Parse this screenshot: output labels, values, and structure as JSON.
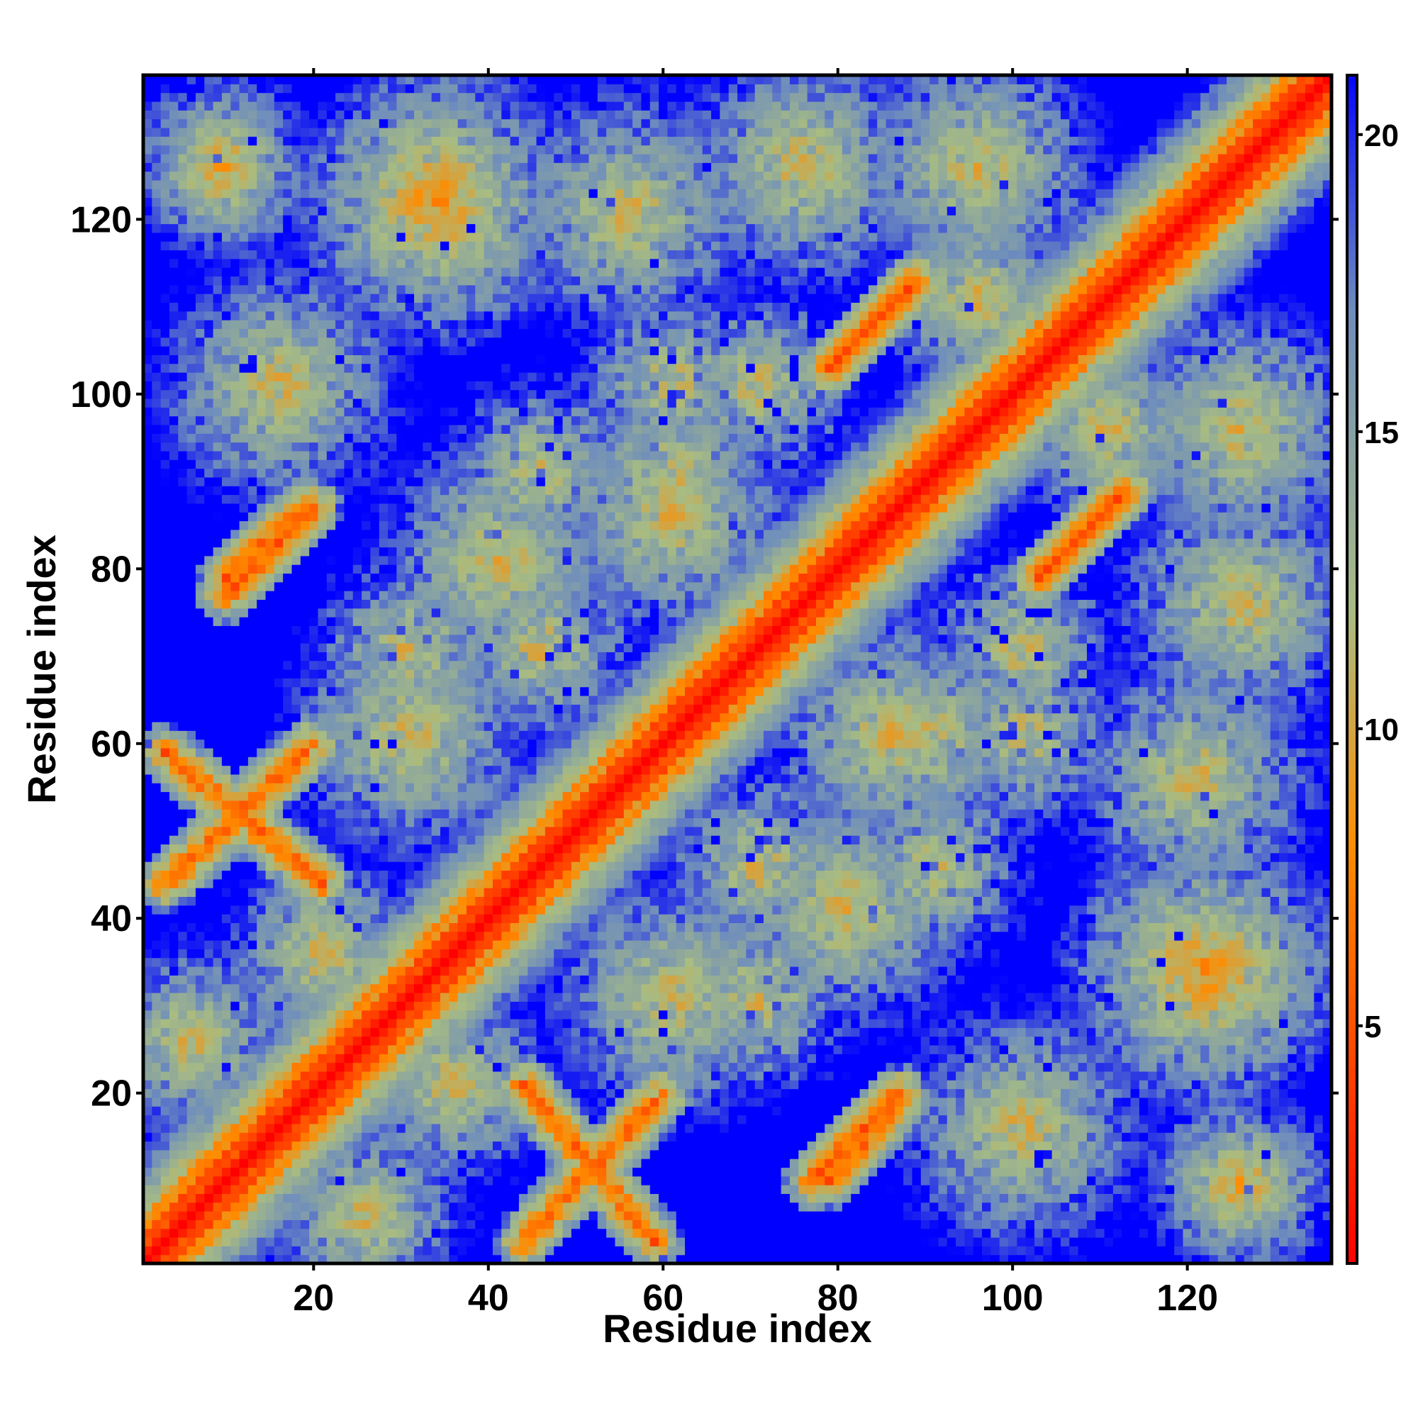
{
  "chart_data": {
    "type": "heatmap",
    "title": "",
    "xlabel": "Residue index",
    "ylabel": "Residue index",
    "xlim": [
      1,
      136
    ],
    "ylim": [
      1,
      136
    ],
    "n_residues": 136,
    "x_ticks": [
      20,
      40,
      60,
      80,
      100,
      120
    ],
    "y_ticks": [
      20,
      40,
      60,
      80,
      100,
      120
    ],
    "colorbar": {
      "range": [
        1,
        21
      ],
      "ticks": [
        5,
        10,
        15,
        20
      ],
      "colors": [
        "#ff0000",
        "#ff8c00",
        "#a8bc82",
        "#6f8ebc",
        "#0000ff"
      ],
      "stops": [
        1,
        8,
        12,
        17,
        21.2
      ]
    },
    "value_encoding": "pairwise distance; low values along diagonal (red), high values background (blue)",
    "contact_features": [
      {
        "kind": "diagonal",
        "desc": "main diagonal band i≈j",
        "value": 1.5
      },
      {
        "kind": "helix_band",
        "desc": "i-j offset ±4 band",
        "value": 6
      },
      {
        "kind": "anti_diagonal_segment",
        "x": [
          3,
          21
        ],
        "y": [
          59,
          44
        ],
        "value": 6
      },
      {
        "kind": "anti_diagonal_segment",
        "x": [
          10,
          19
        ],
        "y": [
          79,
          87
        ],
        "value": 6
      },
      {
        "kind": "anti_diagonal_segment",
        "x": [
          44,
          60
        ],
        "y": [
          3,
          20
        ],
        "value": 6
      },
      {
        "kind": "anti_diagonal_segment",
        "x": [
          77,
          87
        ],
        "y": [
          10,
          20
        ],
        "value": 6
      },
      {
        "kind": "anti_diagonal_segment",
        "x": [
          79,
          89
        ],
        "y": [
          103,
          113
        ],
        "value": 6
      },
      {
        "kind": "anti_diagonal_segment",
        "x": [
          103,
          113
        ],
        "y": [
          79,
          89
        ],
        "value": 6
      },
      {
        "kind": "cluster",
        "x": [
          110,
          134
        ],
        "y": [
          22,
          46
        ],
        "value": 9
      },
      {
        "kind": "cluster",
        "x": [
          22,
          46
        ],
        "y": [
          110,
          134
        ],
        "value": 9
      },
      {
        "kind": "cluster",
        "x": [
          1,
          18
        ],
        "y": [
          118,
          134
        ],
        "value": 10
      },
      {
        "kind": "cluster",
        "x": [
          118,
          134
        ],
        "y": [
          1,
          18
        ],
        "value": 10
      }
    ]
  }
}
